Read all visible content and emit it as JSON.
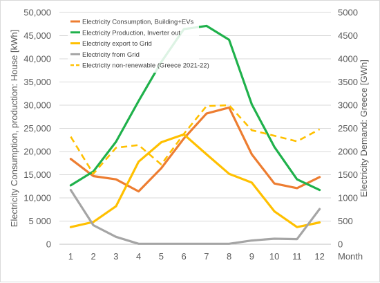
{
  "chart_data": {
    "type": "line",
    "title": "",
    "xlabel": "Month",
    "ylabel_left": "Electricity Consumption, production: House [kWh]",
    "ylabel_right": "Electricity Demand: Greece  [GWh]",
    "categories": [
      "1",
      "2",
      "3",
      "4",
      "5",
      "6",
      "7",
      "8",
      "9",
      "10",
      "11",
      "12"
    ],
    "ylim_left": [
      0,
      50000
    ],
    "yticks_left": [
      "0",
      "5 000",
      "10,000",
      "15,000",
      "20,000",
      "25,000",
      "30,000",
      "35,000",
      "40,000",
      "45,000",
      "50,000"
    ],
    "ylim_right": [
      0,
      5000
    ],
    "yticks_right": [
      "0",
      "500",
      "1000",
      "1500",
      "2000",
      "2500",
      "3000",
      "3500",
      "4000",
      "4500",
      "5000"
    ],
    "grid": true,
    "legend_position": "top-left",
    "series": [
      {
        "name": "Electricity Consumption, Building+EVs",
        "axis": "left",
        "color": "#ed7d31",
        "dash": false,
        "values": [
          18400,
          14700,
          14000,
          11400,
          16400,
          22800,
          28200,
          29500,
          19400,
          13100,
          12100,
          14500
        ]
      },
      {
        "name": "Electricity Production, Inverter out",
        "axis": "left",
        "color": "#1fb14b",
        "dash": false,
        "values": [
          12700,
          15700,
          22100,
          30900,
          39300,
          46400,
          47100,
          44100,
          30200,
          21000,
          14000,
          11700
        ]
      },
      {
        "name": "Electricity export to Grid",
        "axis": "left",
        "color": "#ffc000",
        "dash": false,
        "values": [
          3700,
          4800,
          8200,
          17800,
          22000,
          23700,
          19400,
          15200,
          13300,
          7100,
          3700,
          4700
        ]
      },
      {
        "name": "Electricity from Grid",
        "axis": "left",
        "color": "#a5a5a5",
        "dash": false,
        "values": [
          11700,
          4100,
          1600,
          100,
          100,
          100,
          100,
          100,
          800,
          1200,
          1100,
          7600
        ]
      },
      {
        "name": "Electricity non-renewable (Greece 2021-22)",
        "axis": "right",
        "color": "#ffc000",
        "dash": true,
        "values": [
          2320,
          1520,
          2080,
          2140,
          1720,
          2380,
          2980,
          3000,
          2460,
          2340,
          2220,
          2480
        ]
      }
    ]
  }
}
